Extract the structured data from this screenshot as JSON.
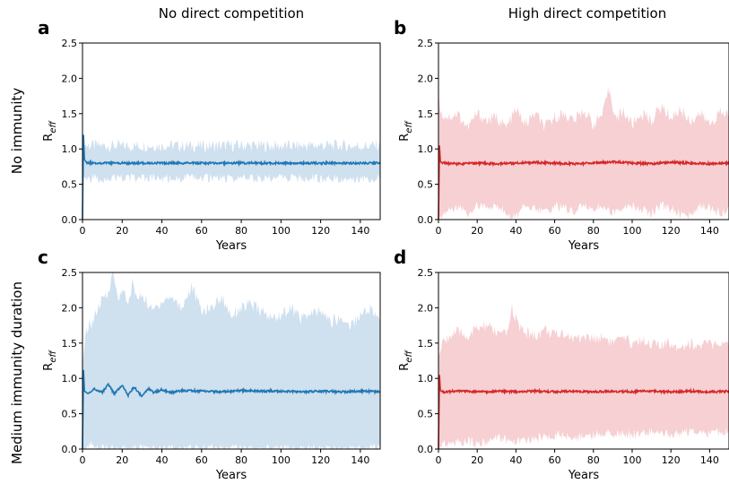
{
  "column_titles": [
    "No direct competition",
    "High direct competition"
  ],
  "row_titles": [
    "No immunity",
    "Medium immunity duration"
  ],
  "x_axis": {
    "label": "Years",
    "ticks": [
      0,
      20,
      40,
      60,
      80,
      100,
      120,
      140
    ]
  },
  "y_axis": {
    "label_main": "R",
    "label_sub": "eff",
    "ticks": [
      "0.0",
      "0.5",
      "1.0",
      "1.5",
      "2.0",
      "2.5"
    ]
  },
  "colors": {
    "blue_line": "#1f77b4",
    "blue_band": "#cfe0ef",
    "red_line": "#d62728",
    "red_band": "#f6d0d3"
  },
  "chart_data": [
    {
      "panel": "a",
      "type": "area",
      "color": "blue",
      "xlim": [
        0,
        150
      ],
      "ylim": [
        0,
        2.5
      ],
      "xlabel": "Years",
      "ylabel": "R_eff",
      "series": [
        {
          "role": "mean",
          "x": [
            0,
            0.5,
            1,
            2,
            5,
            10,
            20,
            40,
            60,
            80,
            100,
            120,
            140,
            150
          ],
          "y": [
            0.0,
            1.2,
            0.85,
            0.81,
            0.8,
            0.8,
            0.8,
            0.8,
            0.8,
            0.8,
            0.8,
            0.8,
            0.8,
            0.8
          ]
        },
        {
          "role": "upper",
          "x": [
            0,
            1,
            5,
            20,
            40,
            60,
            80,
            100,
            120,
            140,
            150
          ],
          "y": [
            1.05,
            1.05,
            1.05,
            1.04,
            1.05,
            1.04,
            1.05,
            1.04,
            1.05,
            1.04,
            1.05
          ]
        },
        {
          "role": "lower",
          "x": [
            0,
            1,
            5,
            20,
            40,
            60,
            80,
            100,
            120,
            140,
            150
          ],
          "y": [
            0.58,
            0.6,
            0.58,
            0.59,
            0.58,
            0.59,
            0.58,
            0.59,
            0.58,
            0.59,
            0.58
          ]
        }
      ]
    },
    {
      "panel": "b",
      "type": "area",
      "color": "red",
      "xlim": [
        0,
        150
      ],
      "ylim": [
        0,
        2.5
      ],
      "xlabel": "Years",
      "ylabel": "R_eff",
      "series": [
        {
          "role": "mean",
          "x": [
            0,
            0.5,
            1,
            2,
            10,
            20,
            30,
            40,
            50,
            60,
            70,
            80,
            90,
            100,
            110,
            120,
            130,
            140,
            150
          ],
          "y": [
            0.0,
            1.05,
            0.82,
            0.8,
            0.79,
            0.8,
            0.79,
            0.8,
            0.81,
            0.8,
            0.79,
            0.8,
            0.82,
            0.8,
            0.79,
            0.81,
            0.8,
            0.79,
            0.8
          ]
        },
        {
          "role": "upper",
          "x": [
            0,
            1,
            5,
            10,
            15,
            20,
            25,
            30,
            35,
            40,
            45,
            50,
            55,
            60,
            65,
            70,
            75,
            80,
            85,
            88,
            92,
            95,
            100,
            105,
            110,
            115,
            120,
            125,
            130,
            135,
            140,
            145,
            150
          ],
          "y": [
            1.8,
            1.5,
            1.45,
            1.5,
            1.3,
            1.5,
            1.4,
            1.45,
            1.3,
            1.55,
            1.35,
            1.5,
            1.3,
            1.45,
            1.5,
            1.4,
            1.55,
            1.35,
            1.5,
            1.85,
            1.4,
            1.55,
            1.35,
            1.5,
            1.4,
            1.6,
            1.45,
            1.55,
            1.4,
            1.5,
            1.35,
            1.5,
            1.5
          ]
        },
        {
          "role": "lower",
          "x": [
            0,
            1,
            5,
            10,
            15,
            20,
            25,
            30,
            35,
            40,
            45,
            50,
            55,
            60,
            65,
            70,
            75,
            80,
            85,
            90,
            95,
            100,
            105,
            110,
            115,
            120,
            125,
            130,
            135,
            140,
            145,
            150
          ],
          "y": [
            0.0,
            0.05,
            0.15,
            0.2,
            0.1,
            0.2,
            0.15,
            0.2,
            0.1,
            0.05,
            0.2,
            0.15,
            0.1,
            0.2,
            0.15,
            0.1,
            0.2,
            0.15,
            0.2,
            0.1,
            0.15,
            0.2,
            0.15,
            0.1,
            0.2,
            0.15,
            0.1,
            0.05,
            0.2,
            0.15,
            0.1,
            0.15
          ]
        }
      ]
    },
    {
      "panel": "c",
      "type": "area",
      "color": "blue",
      "xlim": [
        0,
        150
      ],
      "ylim": [
        0,
        2.5
      ],
      "xlabel": "Years",
      "ylabel": "R_eff",
      "series": [
        {
          "role": "mean",
          "x": [
            0,
            0.5,
            1,
            3,
            6,
            10,
            13,
            16,
            20,
            23,
            26,
            30,
            33,
            36,
            40,
            45,
            50,
            60,
            70,
            80,
            90,
            100,
            110,
            120,
            130,
            140,
            150
          ],
          "y": [
            0.0,
            1.12,
            0.82,
            0.78,
            0.85,
            0.8,
            0.92,
            0.78,
            0.9,
            0.76,
            0.88,
            0.74,
            0.86,
            0.8,
            0.84,
            0.8,
            0.83,
            0.82,
            0.81,
            0.83,
            0.82,
            0.82,
            0.81,
            0.82,
            0.81,
            0.82,
            0.81
          ]
        },
        {
          "role": "upper",
          "x": [
            0,
            2,
            5,
            8,
            10,
            13,
            15,
            18,
            20,
            23,
            25,
            28,
            30,
            35,
            40,
            45,
            50,
            55,
            60,
            65,
            70,
            75,
            80,
            85,
            90,
            95,
            100,
            105,
            110,
            115,
            120,
            125,
            130,
            135,
            140,
            145,
            150
          ],
          "y": [
            1.2,
            1.7,
            1.8,
            2.0,
            2.1,
            2.2,
            2.55,
            2.1,
            2.3,
            2.0,
            2.35,
            2.1,
            2.2,
            1.95,
            2.1,
            2.15,
            2.0,
            2.3,
            1.95,
            2.0,
            2.15,
            1.9,
            2.0,
            2.05,
            1.95,
            1.85,
            1.9,
            2.0,
            1.85,
            1.9,
            1.95,
            1.8,
            1.85,
            1.75,
            1.9,
            2.0,
            1.8
          ]
        },
        {
          "role": "lower",
          "x": [
            0,
            2,
            4,
            6,
            10,
            20,
            30,
            40,
            60,
            80,
            100,
            120,
            140,
            150
          ],
          "y": [
            0.0,
            0.0,
            0.1,
            0.0,
            0.0,
            0.0,
            0.0,
            0.0,
            0.0,
            0.0,
            0.0,
            0.0,
            0.0,
            0.0
          ]
        }
      ]
    },
    {
      "panel": "d",
      "type": "area",
      "color": "red",
      "xlim": [
        0,
        150
      ],
      "ylim": [
        0,
        2.5
      ],
      "xlabel": "Years",
      "ylabel": "R_eff",
      "series": [
        {
          "role": "mean",
          "x": [
            0,
            0.5,
            1,
            2,
            10,
            20,
            30,
            40,
            50,
            60,
            70,
            80,
            90,
            100,
            110,
            120,
            130,
            140,
            150
          ],
          "y": [
            0.0,
            1.05,
            0.83,
            0.81,
            0.82,
            0.81,
            0.82,
            0.81,
            0.82,
            0.81,
            0.82,
            0.81,
            0.82,
            0.81,
            0.82,
            0.81,
            0.82,
            0.81,
            0.82
          ]
        },
        {
          "role": "upper",
          "x": [
            0,
            3,
            6,
            10,
            15,
            20,
            25,
            30,
            35,
            38,
            42,
            45,
            50,
            55,
            60,
            65,
            70,
            75,
            80,
            85,
            90,
            95,
            100,
            105,
            110,
            115,
            120,
            125,
            130,
            135,
            140,
            145,
            150
          ],
          "y": [
            1.3,
            1.55,
            1.6,
            1.65,
            1.6,
            1.7,
            1.75,
            1.65,
            1.6,
            2.0,
            1.7,
            1.65,
            1.6,
            1.7,
            1.6,
            1.65,
            1.55,
            1.6,
            1.55,
            1.6,
            1.5,
            1.55,
            1.5,
            1.55,
            1.5,
            1.45,
            1.5,
            1.45,
            1.5,
            1.45,
            1.5,
            1.45,
            1.45
          ]
        },
        {
          "role": "lower",
          "x": [
            0,
            3,
            6,
            10,
            15,
            20,
            25,
            30,
            40,
            50,
            60,
            70,
            80,
            90,
            100,
            110,
            120,
            130,
            140,
            150
          ],
          "y": [
            0.0,
            0.1,
            0.05,
            0.1,
            0.12,
            0.05,
            0.1,
            0.15,
            0.1,
            0.15,
            0.2,
            0.15,
            0.2,
            0.22,
            0.2,
            0.25,
            0.2,
            0.25,
            0.22,
            0.25
          ]
        }
      ]
    }
  ]
}
